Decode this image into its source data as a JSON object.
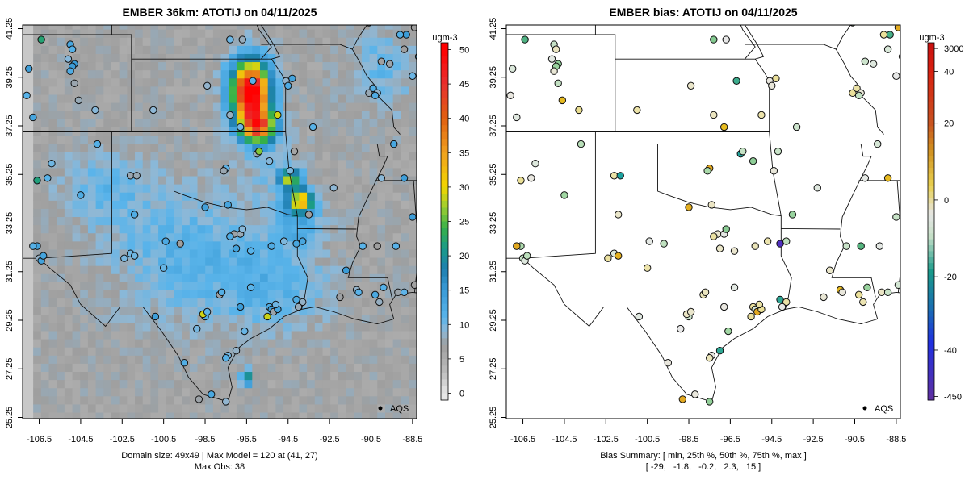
{
  "chart_data": [
    {
      "type": "heatmap",
      "title": "EMBER 36km: ATOTIJ on 04/11/2025",
      "x_ticks": [
        "-106.5",
        "-104.5",
        "-102.5",
        "-100.5",
        "-98.5",
        "-96.5",
        "-94.5",
        "-92.5",
        "-90.5",
        "-88.5"
      ],
      "y_ticks": [
        "25.25",
        "27.25",
        "29.25",
        "31.25",
        "33.25",
        "35.25",
        "37.25",
        "39.25",
        "41.25"
      ],
      "xlim": [
        -107.3,
        -88.3
      ],
      "ylim": [
        25.2,
        41.4
      ],
      "grid_size": "49x49",
      "colorbar": {
        "unit": "ugm-3",
        "labels": [
          "0",
          "5",
          "10",
          "15",
          "20",
          "25",
          "30",
          "35",
          "40",
          "45",
          "50"
        ],
        "range": [
          -1,
          51
        ]
      },
      "legend": "AQS",
      "notes": [
        "Domain size: 49x49 | Max Model = 120 at (41, 27)",
        "Max Obs: 38"
      ],
      "max_model": 120,
      "max_model_cell": [
        41,
        27
      ],
      "max_obs": 38
    },
    {
      "type": "scatter",
      "title": "EMBER bias: ATOTIJ on 04/11/2025",
      "x_ticks": [
        "-106.5",
        "-104.5",
        "-102.5",
        "-100.5",
        "-98.5",
        "-96.5",
        "-94.5",
        "-92.5",
        "-90.5",
        "-88.5"
      ],
      "y_ticks": [
        "25.25",
        "27.25",
        "29.25",
        "31.25",
        "33.25",
        "35.25",
        "37.25",
        "39.25",
        "41.25"
      ],
      "xlim": [
        -107.3,
        -88.3
      ],
      "ylim": [
        25.2,
        41.4
      ],
      "colorbar": {
        "unit": "ugm-3",
        "labels": [
          "3000",
          "40",
          "20",
          "0",
          "-20",
          "-40",
          "-450"
        ]
      },
      "legend": "AQS",
      "summary_lines": [
        "Bias Summary: [ min, 25th %, 50th %, 75th %, max ]",
        "[ -29,   -1.8,   -0.2,   2.3,   15 ]"
      ],
      "bias_summary": {
        "min": -29,
        "p25": -1.8,
        "p50": -0.2,
        "p75": 2.3,
        "max": 15
      }
    }
  ]
}
